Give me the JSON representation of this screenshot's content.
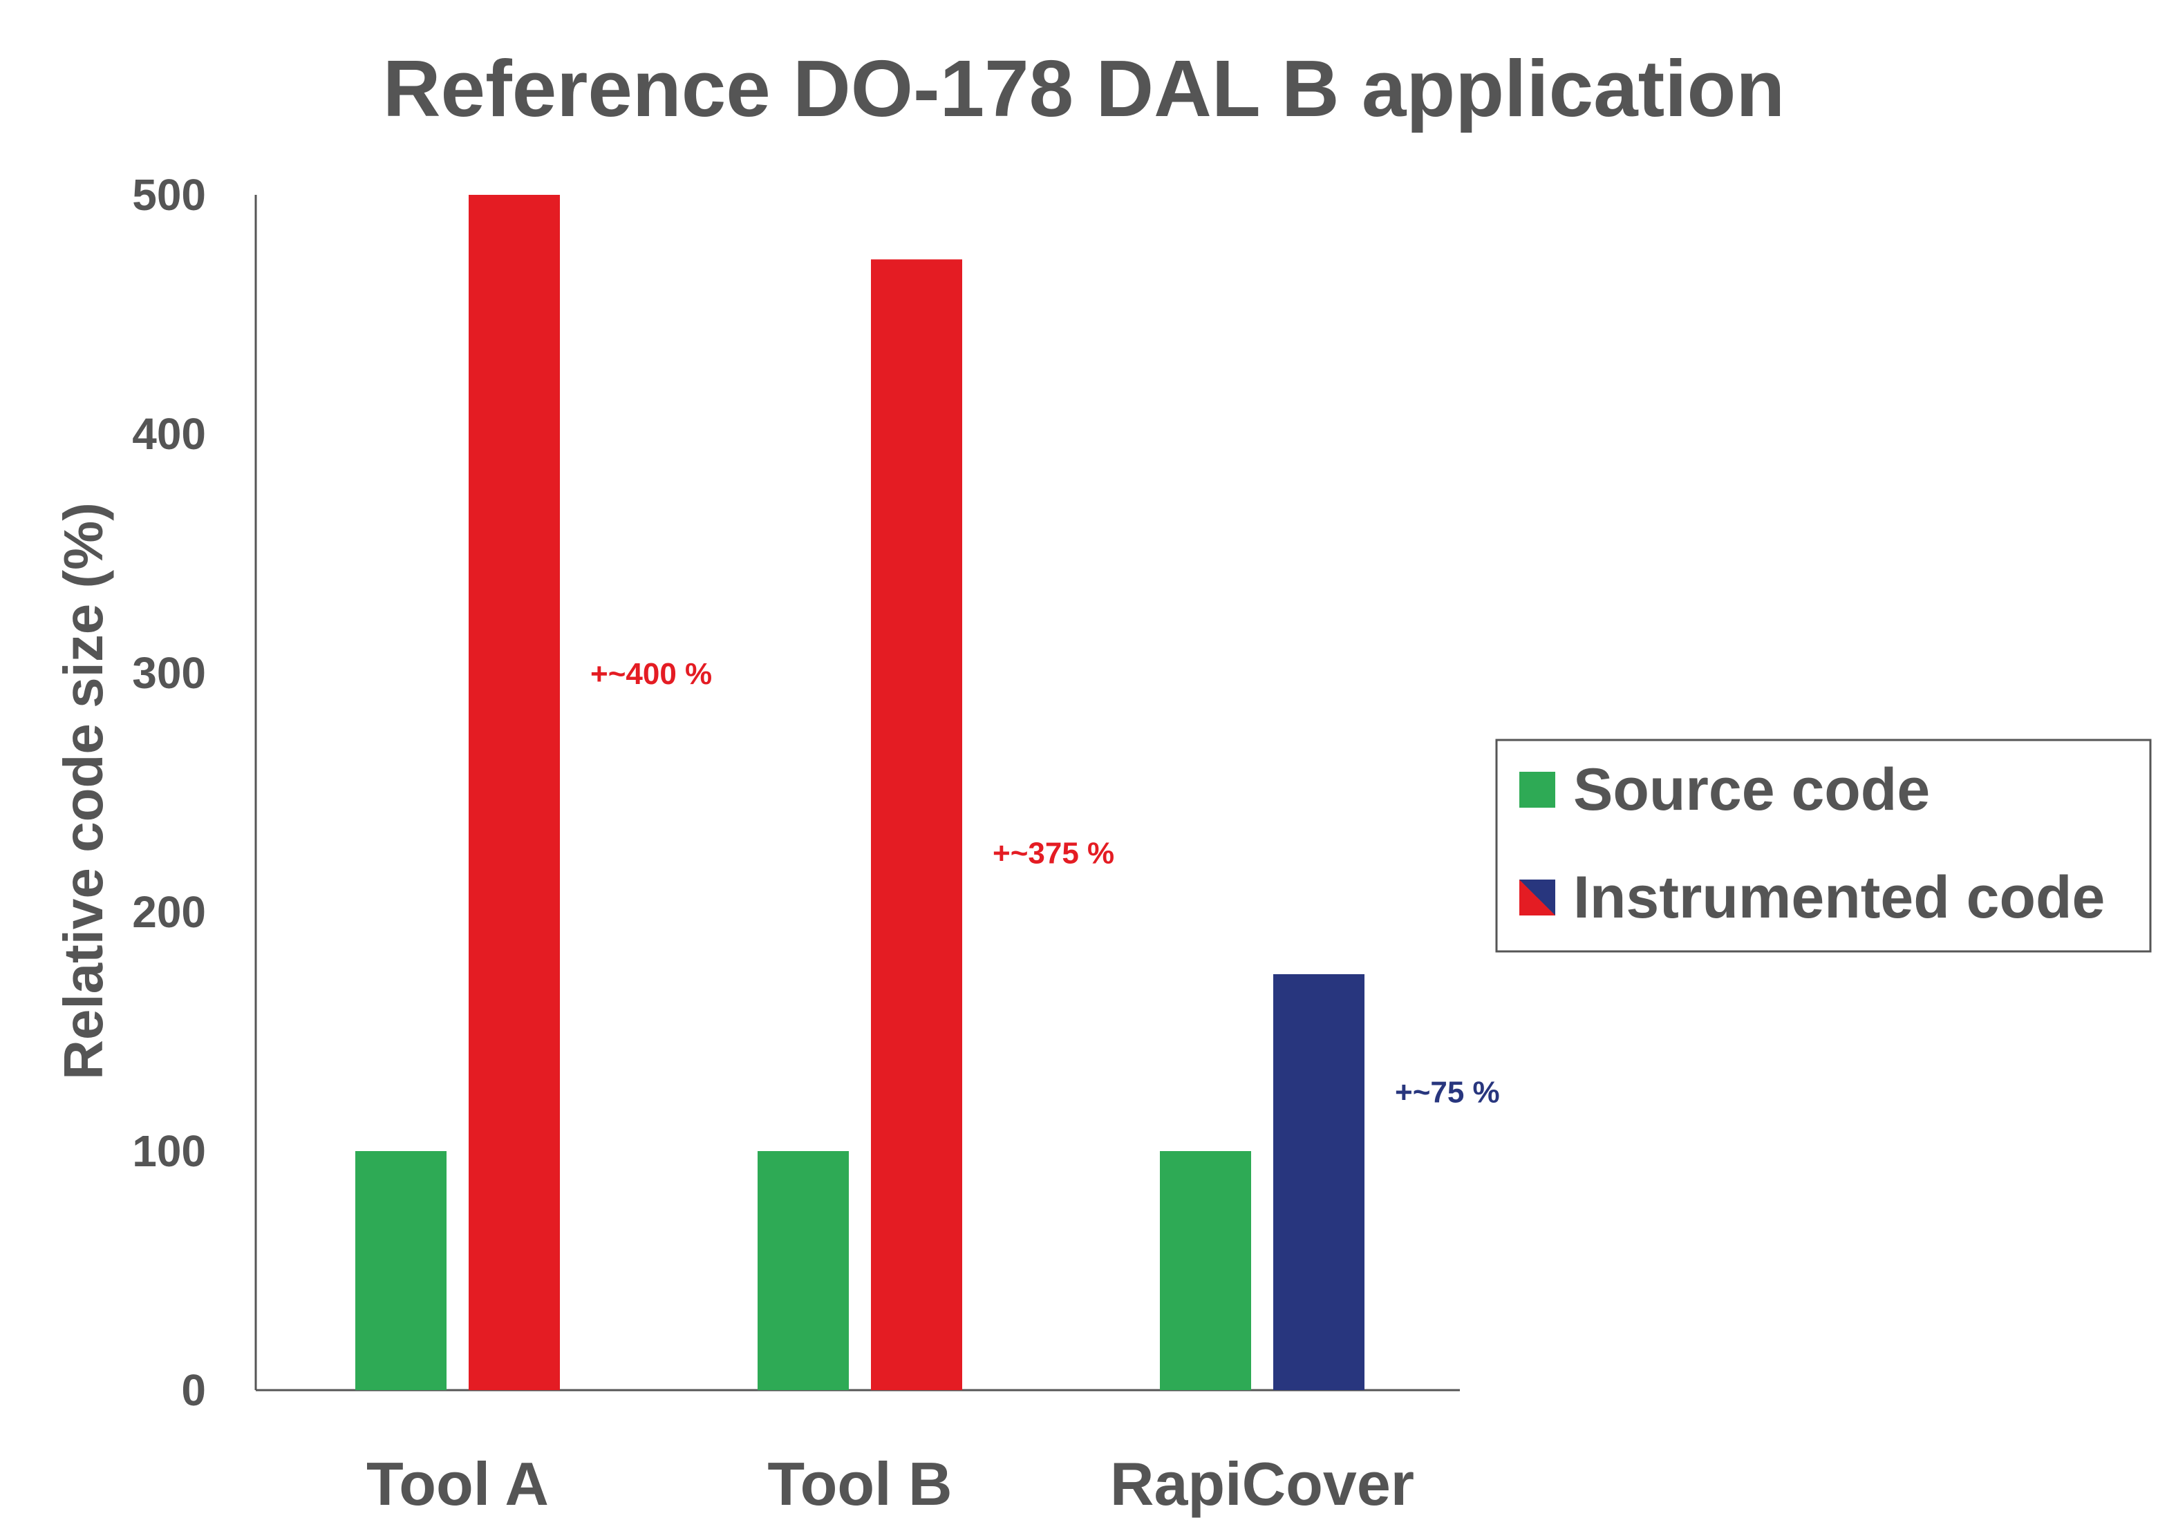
{
  "chart_data": {
    "type": "bar",
    "title": "Reference DO-178 DAL B application",
    "ylabel": "Relative code size (%)",
    "xlabel": "",
    "ylim": [
      0,
      500
    ],
    "yticks": [
      "0",
      "100",
      "200",
      "300",
      "400",
      "500"
    ],
    "yticks_values": [
      0,
      100,
      200,
      300,
      400,
      500
    ],
    "grid": false,
    "categories": [
      "Tool A",
      "Tool B",
      "RapiCover"
    ],
    "series": [
      {
        "name": "Source code",
        "values": [
          100,
          100,
          100
        ],
        "color": "#2eaa55"
      },
      {
        "name": "Instrumented code",
        "values": [
          500,
          473,
          174
        ],
        "colors": [
          "#e41c23",
          "#e41c23",
          "#28367e"
        ]
      }
    ],
    "annotations": [
      {
        "text": "+~400 %",
        "category": "Tool A",
        "value": 300,
        "color": "#e41c23"
      },
      {
        "text": "+~375 %",
        "category": "Tool B",
        "value": 225,
        "color": "#e41c23"
      },
      {
        "text": "+~75 %",
        "category": "RapiCover",
        "value": 125,
        "color": "#28367e"
      }
    ],
    "legend": {
      "position": "right",
      "entries": [
        {
          "label": "Source code",
          "color": "#2eaa55"
        },
        {
          "label": "Instrumented code",
          "colors": [
            "#e41c23",
            "#28367e"
          ]
        }
      ]
    }
  },
  "colors": {
    "axis": "#555555",
    "text": "#555555",
    "source": "#2eaa55",
    "instrumented_red": "#e41c23",
    "instrumented_blue": "#28367e"
  }
}
